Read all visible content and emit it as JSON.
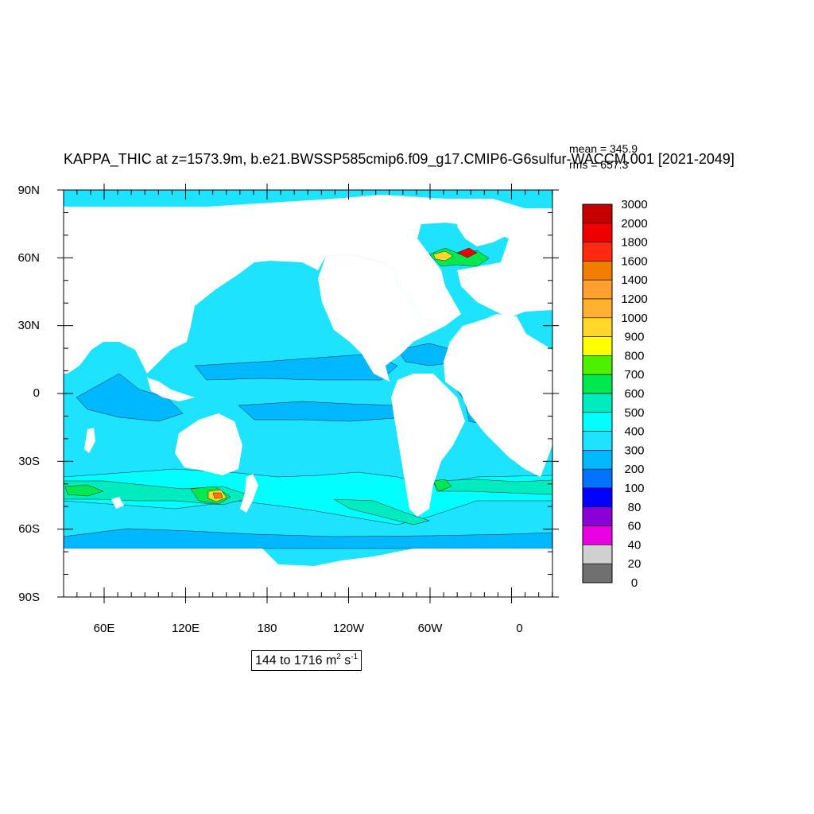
{
  "title": "KAPPA_THIC at z=1573.9m, b.e21.BWSSP585cmip6.f09_g17.CMIP6-G6sulfur-WACCM.001 [2021-2049]",
  "stats": {
    "mean": "mean = 345.9",
    "rms": "rms = 657.3"
  },
  "axes": {
    "lat_labels": [
      "90N",
      "60N",
      "30N",
      "0",
      "30S",
      "60S",
      "90S"
    ],
    "lon_labels": [
      "60E",
      "120E",
      "180",
      "120W",
      "60W",
      "0"
    ]
  },
  "range": {
    "text": "144 to 1716 m",
    "sup1": "2",
    "mid": " s",
    "sup2": "-1"
  },
  "colorbar": {
    "labels": [
      "3000",
      "2000",
      "1800",
      "1600",
      "1400",
      "1200",
      "1000",
      "900",
      "800",
      "700",
      "600",
      "500",
      "400",
      "300",
      "200",
      "100",
      "80",
      "60",
      "40",
      "20",
      "0"
    ],
    "colors": [
      "#c40000",
      "#ee0000",
      "#ff2a10",
      "#f27e00",
      "#ffa030",
      "#ffb22e",
      "#ffd829",
      "#ffff00",
      "#4cf000",
      "#00e850",
      "#00ecbe",
      "#00ffff",
      "#1ee3ff",
      "#00b8ff",
      "#0072ff",
      "#0000ff",
      "#8c00d8",
      "#e800e0",
      "#d0d0d0",
      "#707070"
    ]
  },
  "map_colors": {
    "ocean_base": "#1ee3ff",
    "ocean_low": "#00b8ff",
    "ocean_mid": "#00ffff",
    "ocean_high": "#00ecbe",
    "ocean_green": "#00e850",
    "hot_yellow": "#ffd829",
    "hot_orange": "#f27e00",
    "hot_red": "#ee0000",
    "land": "#ffffff"
  }
}
